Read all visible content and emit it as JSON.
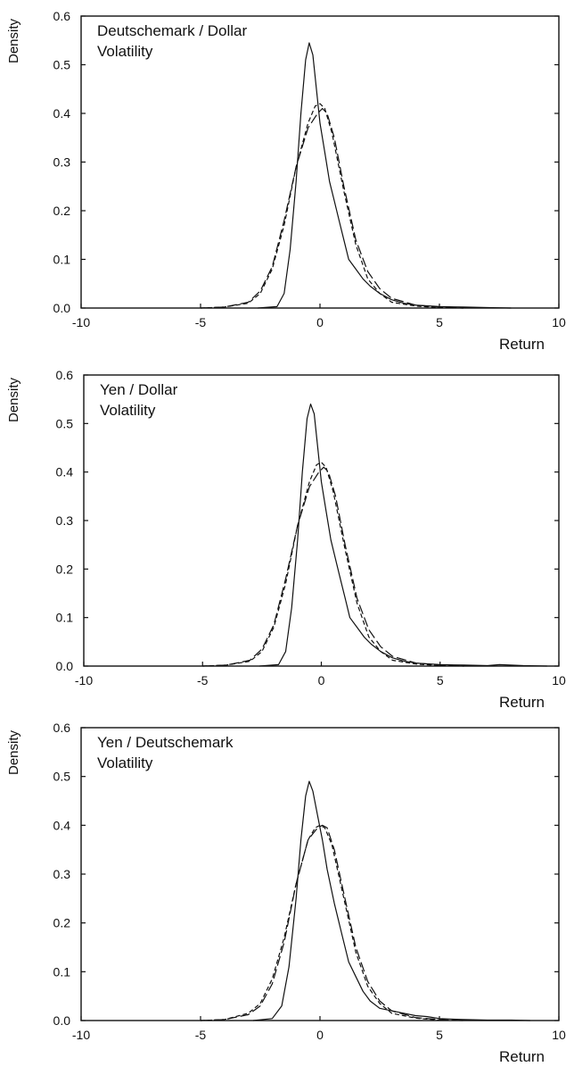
{
  "chart_data": [
    {
      "type": "line",
      "title_lines": [
        "Deutschemark / Dollar",
        "Volatility"
      ],
      "xlabel": "Return",
      "ylabel": "Density",
      "xlim": [
        -10,
        10
      ],
      "ylim": [
        0,
        0.6
      ],
      "xticks": [
        "-10",
        "-5",
        "0",
        "5",
        "10"
      ],
      "yticks": [
        "0.0",
        "0.1",
        "0.2",
        "0.3",
        "0.4",
        "0.5",
        "0.6"
      ],
      "grid": false,
      "series": [
        {
          "style": "solid",
          "x": [
            -2.6,
            -1.8,
            -1.5,
            -1.25,
            -1.0,
            -0.8,
            -0.6,
            -0.45,
            -0.3,
            -0.15,
            0.0,
            0.2,
            0.4,
            0.6,
            0.8,
            1.0,
            1.2,
            1.5,
            1.8,
            2.1,
            2.5,
            3.0,
            3.5,
            4.0,
            5.0,
            6.0,
            7.0,
            8.0
          ],
          "y": [
            0,
            0.003,
            0.03,
            0.12,
            0.26,
            0.4,
            0.51,
            0.545,
            0.52,
            0.45,
            0.38,
            0.32,
            0.26,
            0.22,
            0.18,
            0.14,
            0.1,
            0.08,
            0.06,
            0.045,
            0.03,
            0.017,
            0.01,
            0.006,
            0.003,
            0.002,
            0.001,
            0.0
          ]
        },
        {
          "style": "dashed",
          "x": [
            -5.0,
            -4.0,
            -3.0,
            -2.5,
            -2.0,
            -1.5,
            -1.0,
            -0.5,
            -0.2,
            0.0,
            0.2,
            0.5,
            1.0,
            1.5,
            2.0,
            2.5,
            3.0,
            4.0,
            5.0,
            6.0
          ],
          "y": [
            0,
            0.002,
            0.01,
            0.03,
            0.08,
            0.17,
            0.29,
            0.38,
            0.415,
            0.42,
            0.41,
            0.36,
            0.24,
            0.13,
            0.06,
            0.03,
            0.012,
            0.004,
            0.001,
            0.0
          ]
        },
        {
          "style": "longdash",
          "x": [
            -5.0,
            -4.0,
            -3.0,
            -2.5,
            -2.0,
            -1.5,
            -1.0,
            -0.5,
            -0.1,
            0.1,
            0.3,
            0.6,
            1.0,
            1.5,
            2.0,
            2.5,
            3.0,
            4.0,
            5.0,
            6.0
          ],
          "y": [
            0,
            0.002,
            0.012,
            0.035,
            0.085,
            0.18,
            0.29,
            0.37,
            0.4,
            0.41,
            0.4,
            0.35,
            0.25,
            0.14,
            0.075,
            0.04,
            0.02,
            0.006,
            0.002,
            0.0
          ]
        }
      ]
    },
    {
      "type": "line",
      "title_lines": [
        "Yen / Dollar",
        "Volatility"
      ],
      "xlabel": "Return",
      "ylabel": "Density",
      "xlim": [
        -10,
        10
      ],
      "ylim": [
        0,
        0.6
      ],
      "xticks": [
        "-10",
        "-5",
        "0",
        "5",
        "10"
      ],
      "yticks": [
        "0.0",
        "0.1",
        "0.2",
        "0.3",
        "0.4",
        "0.5",
        "0.6"
      ],
      "grid": false,
      "series": [
        {
          "style": "solid",
          "x": [
            -2.6,
            -1.8,
            -1.5,
            -1.25,
            -1.0,
            -0.8,
            -0.6,
            -0.45,
            -0.3,
            -0.15,
            0.0,
            0.2,
            0.4,
            0.6,
            0.8,
            1.0,
            1.2,
            1.5,
            1.8,
            2.1,
            2.5,
            3.0,
            3.5,
            4.0,
            5.0,
            6.0,
            7.0,
            7.5,
            8.5,
            9.5
          ],
          "y": [
            0,
            0.003,
            0.03,
            0.12,
            0.26,
            0.4,
            0.51,
            0.54,
            0.52,
            0.45,
            0.38,
            0.32,
            0.26,
            0.22,
            0.18,
            0.14,
            0.1,
            0.08,
            0.06,
            0.045,
            0.03,
            0.017,
            0.01,
            0.006,
            0.003,
            0.002,
            0.001,
            0.003,
            0.001,
            0.0
          ]
        },
        {
          "style": "dashed",
          "x": [
            -5.0,
            -4.0,
            -3.0,
            -2.5,
            -2.0,
            -1.5,
            -1.0,
            -0.5,
            -0.2,
            0.0,
            0.2,
            0.5,
            1.0,
            1.5,
            2.0,
            2.5,
            3.0,
            4.0,
            5.0,
            6.0
          ],
          "y": [
            0,
            0.002,
            0.01,
            0.03,
            0.08,
            0.17,
            0.29,
            0.38,
            0.415,
            0.42,
            0.41,
            0.36,
            0.24,
            0.13,
            0.06,
            0.03,
            0.012,
            0.004,
            0.001,
            0.0
          ]
        },
        {
          "style": "longdash",
          "x": [
            -5.0,
            -4.0,
            -3.0,
            -2.5,
            -2.0,
            -1.5,
            -1.0,
            -0.5,
            -0.1,
            0.1,
            0.3,
            0.6,
            1.0,
            1.5,
            2.0,
            2.5,
            3.0,
            4.0,
            5.0,
            6.0
          ],
          "y": [
            0,
            0.002,
            0.012,
            0.035,
            0.085,
            0.18,
            0.29,
            0.37,
            0.4,
            0.41,
            0.4,
            0.35,
            0.25,
            0.14,
            0.075,
            0.04,
            0.02,
            0.006,
            0.002,
            0.0
          ]
        }
      ]
    },
    {
      "type": "line",
      "title_lines": [
        "Yen / Deutschemark",
        "Volatility"
      ],
      "xlabel": "Return",
      "ylabel": "Density",
      "xlim": [
        -10,
        10
      ],
      "ylim": [
        0,
        0.6
      ],
      "xticks": [
        "-10",
        "-5",
        "0",
        "5",
        "10"
      ],
      "yticks": [
        "0.0",
        "0.1",
        "0.2",
        "0.3",
        "0.4",
        "0.5",
        "0.6"
      ],
      "grid": false,
      "series": [
        {
          "style": "solid",
          "x": [
            -2.8,
            -2.0,
            -1.6,
            -1.3,
            -1.0,
            -0.8,
            -0.6,
            -0.45,
            -0.3,
            -0.1,
            0.1,
            0.3,
            0.6,
            0.9,
            1.2,
            1.5,
            1.8,
            2.1,
            2.5,
            3.0,
            3.5,
            4.0,
            4.5,
            5.0,
            6.0,
            7.0,
            8.0,
            8.8
          ],
          "y": [
            0,
            0.004,
            0.03,
            0.11,
            0.25,
            0.37,
            0.46,
            0.49,
            0.47,
            0.42,
            0.37,
            0.31,
            0.24,
            0.18,
            0.12,
            0.09,
            0.06,
            0.04,
            0.025,
            0.02,
            0.015,
            0.01,
            0.008,
            0.004,
            0.002,
            0.001,
            0.001,
            0.0
          ]
        },
        {
          "style": "dashed",
          "x": [
            -5.0,
            -4.0,
            -3.0,
            -2.5,
            -2.0,
            -1.5,
            -1.0,
            -0.5,
            -0.2,
            0.0,
            0.2,
            0.5,
            1.0,
            1.5,
            2.0,
            2.5,
            3.0,
            4.0,
            5.0,
            6.0
          ],
          "y": [
            0,
            0.002,
            0.015,
            0.035,
            0.085,
            0.17,
            0.28,
            0.37,
            0.395,
            0.4,
            0.395,
            0.36,
            0.25,
            0.14,
            0.07,
            0.035,
            0.015,
            0.005,
            0.001,
            0.0
          ]
        },
        {
          "style": "longdash",
          "x": [
            -5.0,
            -4.0,
            -3.0,
            -2.5,
            -2.0,
            -1.5,
            -1.0,
            -0.5,
            -0.1,
            0.1,
            0.3,
            0.6,
            1.0,
            1.5,
            2.0,
            2.5,
            3.0,
            4.0,
            5.0,
            6.0
          ],
          "y": [
            0,
            0.002,
            0.012,
            0.03,
            0.075,
            0.16,
            0.28,
            0.37,
            0.395,
            0.4,
            0.395,
            0.35,
            0.26,
            0.15,
            0.08,
            0.04,
            0.02,
            0.006,
            0.002,
            0.0
          ]
        }
      ]
    }
  ]
}
